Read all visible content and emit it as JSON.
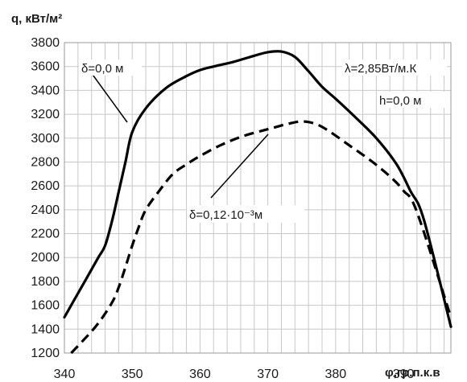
{
  "chart_data": {
    "type": "line",
    "ylabel": "q, кВт/м²",
    "xlabel": "φ,гр.п.к.в",
    "xlim": [
      340,
      397
    ],
    "ylim": [
      1200,
      3800
    ],
    "x_ticks": [
      340,
      350,
      360,
      370,
      380,
      390
    ],
    "y_ticks": [
      1200,
      1400,
      1600,
      1800,
      2000,
      2200,
      2400,
      2600,
      2800,
      3000,
      3200,
      3400,
      3600,
      3800
    ],
    "grid": true,
    "series": [
      {
        "name": "δ=0,0 м",
        "line": "solid",
        "x": [
          340,
          343,
          345,
          346,
          347,
          348,
          349,
          350,
          352,
          355,
          358,
          360,
          362,
          365,
          368,
          370,
          372,
          374,
          376,
          378,
          380,
          383,
          386,
          389,
          391,
          393,
          397
        ],
        "y": [
          1500,
          1800,
          2000,
          2100,
          2300,
          2550,
          2800,
          3050,
          3250,
          3420,
          3520,
          3570,
          3600,
          3640,
          3690,
          3720,
          3725,
          3680,
          3560,
          3430,
          3330,
          3170,
          3000,
          2780,
          2560,
          2320,
          1420
        ]
      },
      {
        "name": "δ=0,12·10⁻³м",
        "line": "dashed",
        "x": [
          341,
          343,
          345,
          347,
          348,
          349,
          350,
          351,
          352,
          354,
          356,
          358,
          360,
          363,
          366,
          369,
          371,
          373,
          375,
          377,
          379,
          382,
          385,
          388,
          390,
          392,
          397
        ],
        "y": [
          1200,
          1320,
          1450,
          1620,
          1750,
          1920,
          2100,
          2260,
          2400,
          2560,
          2700,
          2780,
          2850,
          2940,
          3010,
          3060,
          3090,
          3120,
          3140,
          3120,
          3060,
          2940,
          2820,
          2680,
          2560,
          2380,
          1500
        ]
      }
    ],
    "annotations": [
      "λ=2,85Вт/м.К",
      "h=0,0 м"
    ]
  }
}
